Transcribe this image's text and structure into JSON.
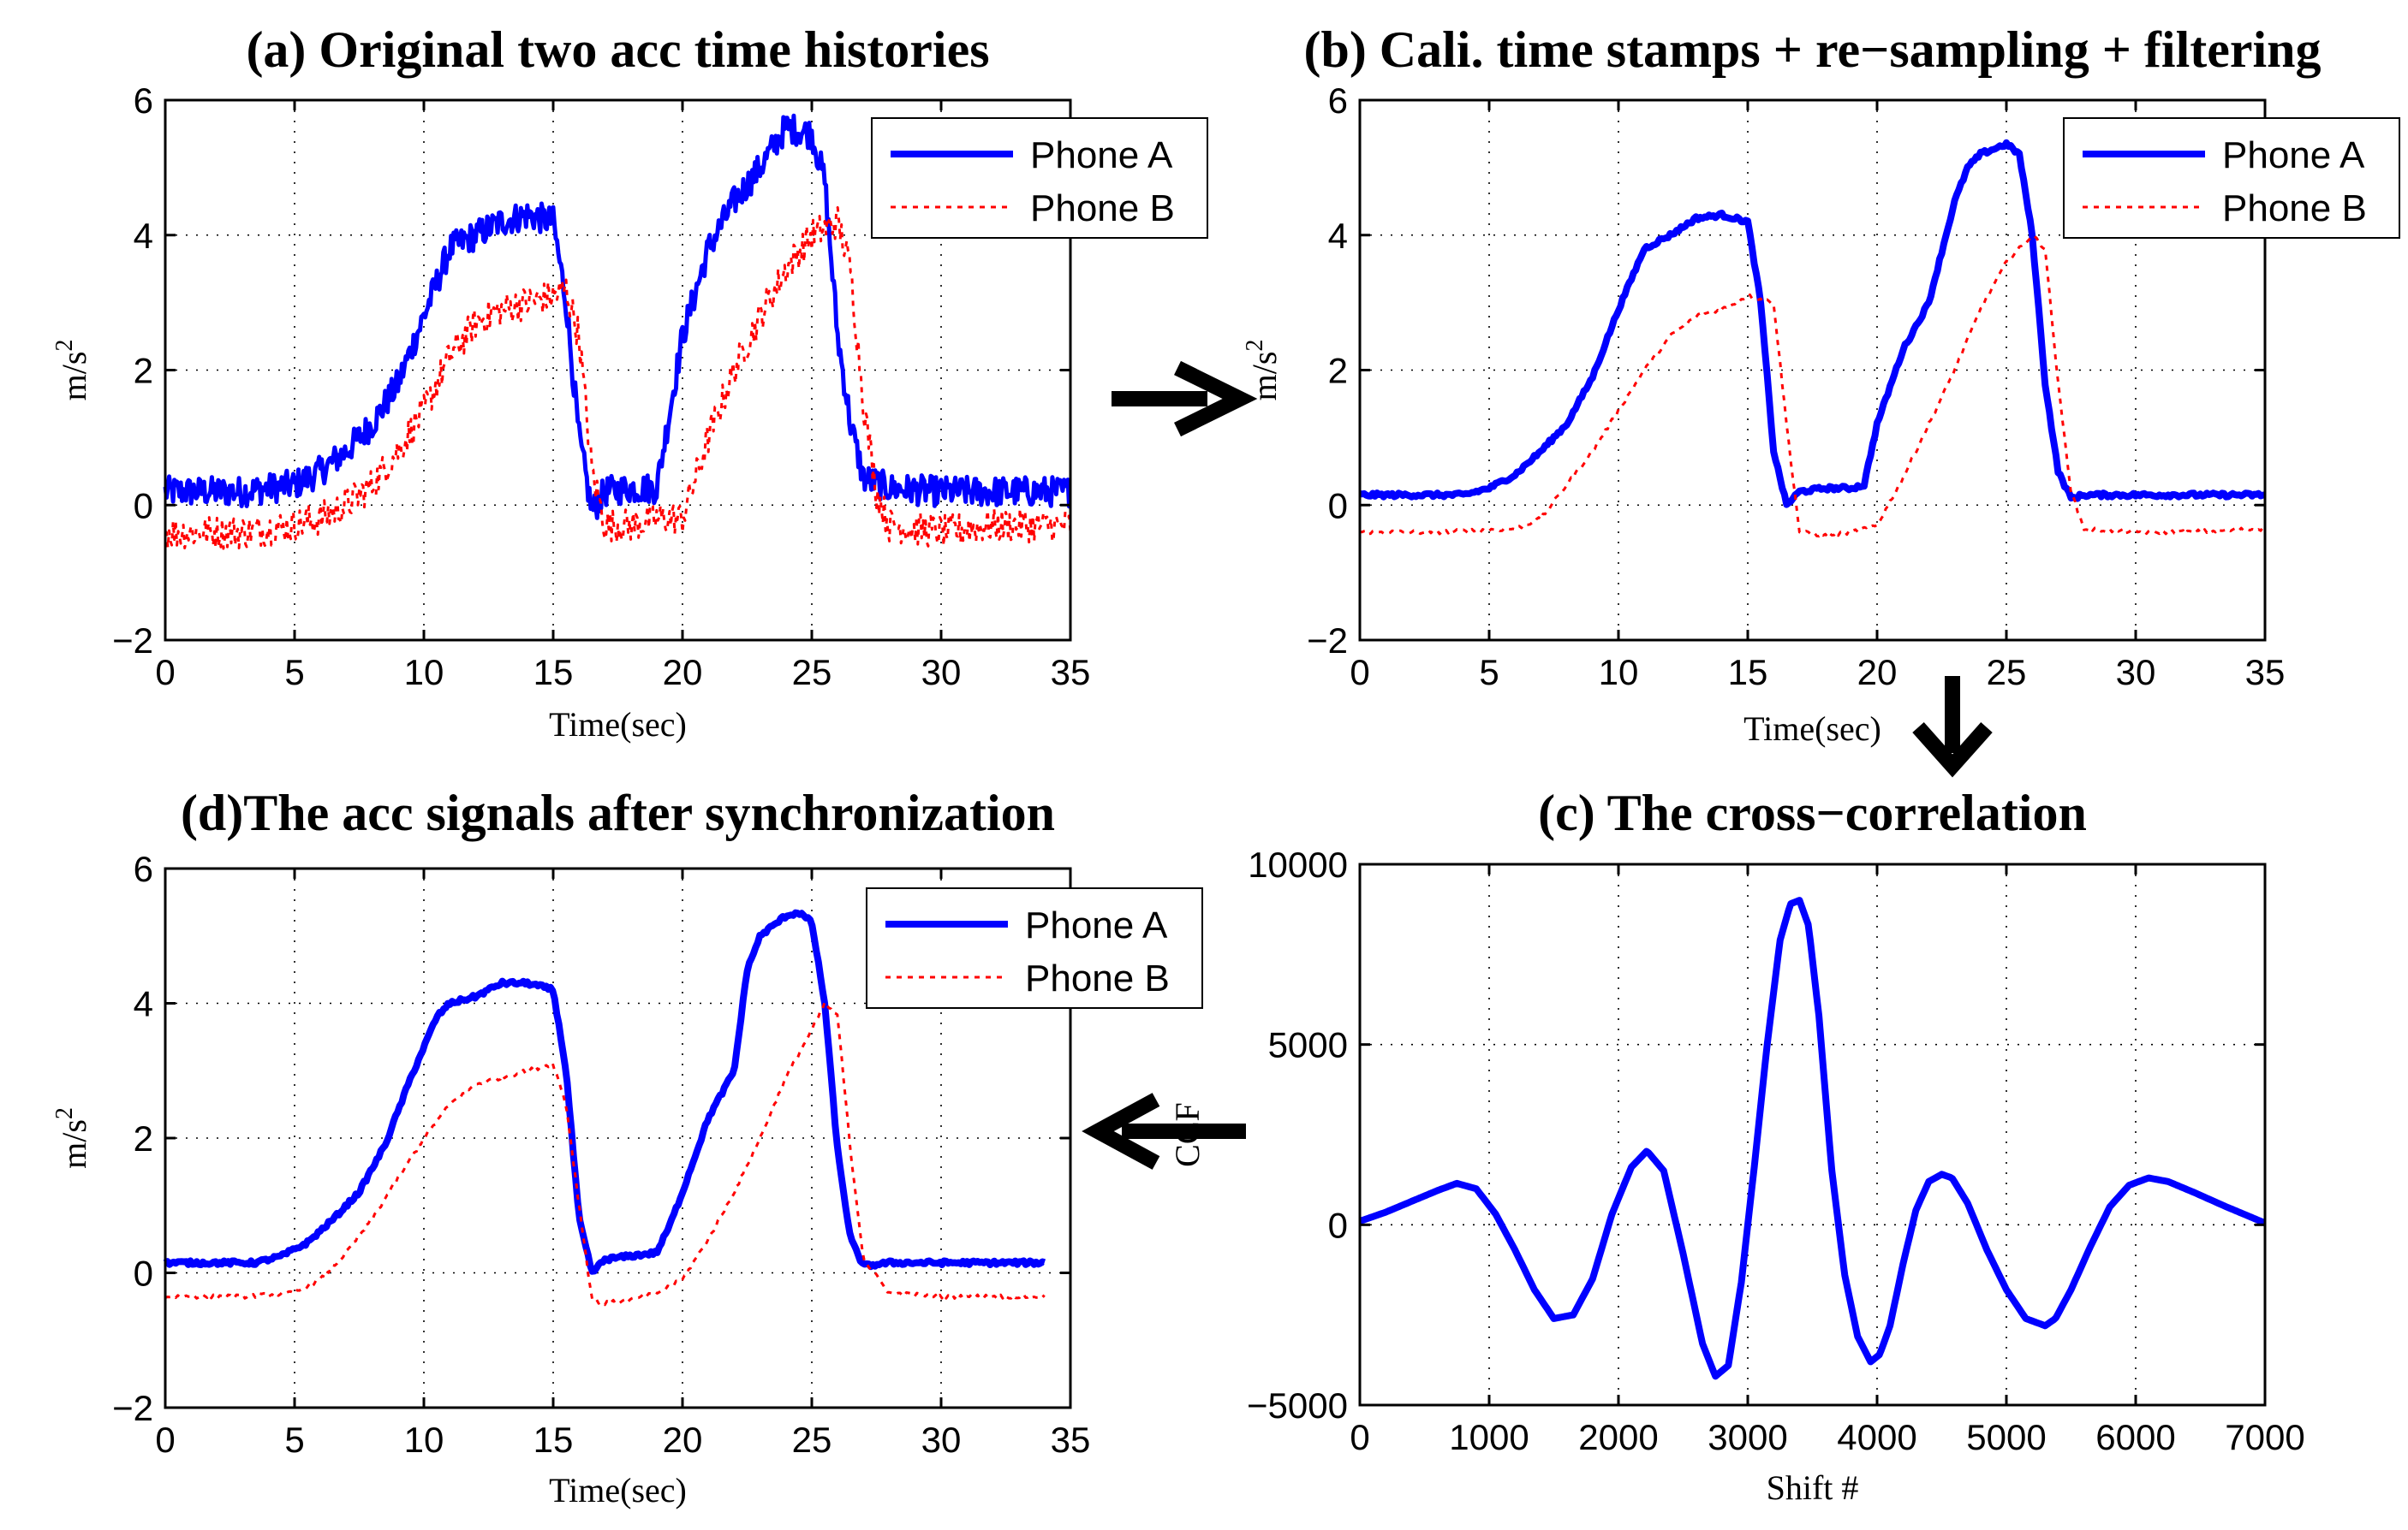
{
  "chart_data": [
    {
      "id": "a",
      "type": "line",
      "title": "(a) Original two acc time histories",
      "xlabel": "Time(sec)",
      "ylabel": "m/s",
      "ylabel_sup": "2",
      "xlim": [
        0,
        35
      ],
      "ylim": [
        -2,
        6
      ],
      "xticks": [
        0,
        5,
        10,
        15,
        20,
        25,
        30,
        35
      ],
      "yticks": [
        -2,
        0,
        2,
        4,
        6
      ],
      "grid": true,
      "legend": "top-right",
      "series": [
        {
          "name": "Phone A",
          "color": "#0000ff",
          "style": "solid",
          "noise": 0.45,
          "x": [
            0,
            3,
            5,
            6,
            7,
            8,
            9,
            10,
            11,
            12,
            13,
            14,
            15,
            15.5,
            16,
            16.5,
            17,
            18,
            19,
            20,
            21,
            22,
            23,
            24,
            25,
            25.5,
            26,
            26.5,
            27,
            28,
            30,
            32,
            35
          ],
          "y": [
            0.2,
            0.2,
            0.3,
            0.5,
            0.8,
            1.2,
            1.8,
            2.8,
            3.8,
            4.0,
            4.2,
            4.3,
            4.2,
            3.0,
            1.0,
            -0.1,
            0.2,
            0.25,
            0.25,
            2.5,
            3.8,
            4.5,
            5.0,
            5.6,
            5.5,
            4.8,
            2.5,
            1.2,
            0.4,
            0.25,
            0.2,
            0.2,
            0.2
          ]
        },
        {
          "name": "Phone B",
          "color": "#ff0000",
          "style": "dotted",
          "noise": 0.5,
          "x": [
            0,
            3,
            5,
            6,
            7,
            8,
            9,
            10,
            11,
            12,
            13,
            14,
            15,
            15.5,
            16,
            16.5,
            17,
            18,
            19,
            20,
            21,
            22,
            23,
            24,
            25,
            26,
            26.5,
            27,
            27.5,
            28,
            30,
            32,
            35
          ],
          "y": [
            -0.4,
            -0.4,
            -0.3,
            -0.2,
            0.0,
            0.3,
            0.8,
            1.4,
            2.2,
            2.7,
            2.9,
            3.0,
            3.1,
            3.2,
            2.5,
            0.5,
            -0.3,
            -0.3,
            -0.2,
            -0.2,
            1.0,
            2.0,
            2.8,
            3.5,
            4.0,
            4.2,
            3.5,
            1.5,
            0.2,
            -0.3,
            -0.4,
            -0.3,
            -0.3
          ]
        }
      ]
    },
    {
      "id": "b",
      "type": "line",
      "title": "(b) Cali. time stamps + re−sampling + filtering",
      "xlabel": "Time(sec)",
      "ylabel": "m/s",
      "ylabel_sup": "2",
      "xlim": [
        0,
        35
      ],
      "ylim": [
        -2,
        6
      ],
      "xticks": [
        0,
        5,
        10,
        15,
        20,
        25,
        30,
        35
      ],
      "yticks": [
        -2,
        0,
        2,
        4,
        6
      ],
      "grid": true,
      "legend": "top-right",
      "series": [
        {
          "name": "Phone A",
          "color": "#0000ff",
          "style": "solid",
          "noise": 0.06,
          "x": [
            0,
            2,
            4,
            5,
            6,
            7,
            8,
            9,
            10,
            11,
            12,
            13,
            14,
            15,
            15.5,
            16,
            16.5,
            17,
            18,
            19,
            19.5,
            20,
            21,
            22,
            23,
            23.5,
            24,
            25,
            25.5,
            26,
            26.5,
            27,
            27.5,
            28,
            30,
            32,
            35
          ],
          "y": [
            0.15,
            0.15,
            0.15,
            0.25,
            0.45,
            0.8,
            1.2,
            1.9,
            2.9,
            3.8,
            4.0,
            4.25,
            4.3,
            4.2,
            3.0,
            0.8,
            0.0,
            0.2,
            0.25,
            0.25,
            0.3,
            1.2,
            2.3,
            3.0,
            4.5,
            5.0,
            5.2,
            5.35,
            5.2,
            4.0,
            1.8,
            0.5,
            0.1,
            0.15,
            0.15,
            0.15,
            0.15
          ]
        },
        {
          "name": "Phone B",
          "color": "#ff0000",
          "style": "dotted",
          "noise": 0.06,
          "x": [
            0,
            3,
            6,
            7,
            8,
            9,
            10,
            11,
            12,
            13,
            14,
            15,
            16,
            16.5,
            17,
            18,
            19,
            20,
            21,
            22,
            23,
            24,
            25,
            26,
            26.5,
            27,
            27.5,
            28,
            30,
            32,
            35
          ],
          "y": [
            -0.4,
            -0.4,
            -0.35,
            -0.2,
            0.3,
            0.8,
            1.4,
            2.0,
            2.5,
            2.8,
            2.9,
            3.1,
            3.0,
            1.2,
            -0.4,
            -0.45,
            -0.4,
            -0.3,
            0.4,
            1.2,
            2.0,
            2.9,
            3.6,
            4.0,
            3.8,
            1.8,
            0.2,
            -0.35,
            -0.4,
            -0.4,
            -0.35
          ]
        }
      ]
    },
    {
      "id": "c",
      "type": "line",
      "title": "(c) The cross−correlation",
      "xlabel": "Shift #",
      "ylabel": "CCF",
      "xlim": [
        0,
        7000
      ],
      "ylim": [
        -5000,
        10000
      ],
      "xticks": [
        0,
        1000,
        2000,
        3000,
        4000,
        5000,
        6000,
        7000
      ],
      "yticks": [
        -5000,
        0,
        5000,
        10000
      ],
      "grid": true,
      "series": [
        {
          "name": "CCF",
          "color": "#0000ff",
          "style": "solid",
          "noise": 0,
          "x": [
            0,
            200,
            400,
            600,
            750,
            900,
            1050,
            1200,
            1350,
            1500,
            1650,
            1800,
            1950,
            2100,
            2220,
            2350,
            2500,
            2650,
            2750,
            2850,
            2950,
            3050,
            3150,
            3250,
            3330,
            3400,
            3470,
            3550,
            3650,
            3750,
            3850,
            3950,
            4020,
            4100,
            4200,
            4300,
            4400,
            4500,
            4580,
            4700,
            4850,
            5000,
            5150,
            5300,
            5380,
            5500,
            5650,
            5800,
            5950,
            6100,
            6250,
            6450,
            6700,
            7000
          ],
          "y": [
            100,
            350,
            650,
            950,
            1150,
            1000,
            300,
            -700,
            -1800,
            -2600,
            -2500,
            -1500,
            300,
            1600,
            2050,
            1500,
            -800,
            -3300,
            -4200,
            -3900,
            -1600,
            1600,
            5000,
            7900,
            8900,
            9000,
            8300,
            5800,
            1500,
            -1400,
            -3100,
            -3800,
            -3600,
            -2800,
            -1100,
            400,
            1200,
            1400,
            1300,
            600,
            -700,
            -1800,
            -2600,
            -2800,
            -2600,
            -1800,
            -600,
            500,
            1100,
            1300,
            1200,
            900,
            500,
            50
          ]
        }
      ]
    },
    {
      "id": "d",
      "type": "line",
      "title": "(d)The acc signals after synchronization",
      "xlabel": "Time(sec)",
      "ylabel": "m/s",
      "ylabel_sup": "2",
      "xlim": [
        0,
        35
      ],
      "ylim": [
        -2,
        6
      ],
      "xticks": [
        0,
        5,
        10,
        15,
        20,
        25,
        30,
        35
      ],
      "yticks": [
        -2,
        0,
        2,
        4,
        6
      ],
      "grid": true,
      "legend": "top-right",
      "series": [
        {
          "name": "Phone A",
          "color": "#0000ff",
          "style": "solid",
          "noise": 0.06,
          "x": [
            0,
            2,
            3.5,
            4.5,
            5.5,
            6.5,
            7.5,
            8.5,
            9.5,
            10.5,
            11,
            12,
            13,
            14,
            15,
            15.5,
            16,
            16.5,
            17,
            18,
            19,
            19.5,
            20,
            21,
            22,
            22.5,
            23,
            24,
            24.5,
            25,
            25.5,
            26,
            26.5,
            27,
            28,
            30,
            32,
            34
          ],
          "y": [
            0.15,
            0.15,
            0.15,
            0.25,
            0.45,
            0.8,
            1.2,
            1.9,
            2.9,
            3.8,
            4.0,
            4.1,
            4.3,
            4.3,
            4.2,
            3.0,
            0.8,
            0.0,
            0.2,
            0.25,
            0.3,
            0.7,
            1.2,
            2.3,
            3.0,
            4.5,
            5.0,
            5.3,
            5.35,
            5.2,
            4.0,
            1.8,
            0.5,
            0.1,
            0.15,
            0.15,
            0.15,
            0.15
          ]
        },
        {
          "name": "Phone B",
          "color": "#ff0000",
          "style": "dotted",
          "noise": 0.06,
          "x": [
            0,
            3,
            5,
            6,
            7,
            8,
            9,
            10,
            11,
            12,
            13,
            14,
            15,
            15.5,
            16,
            16.5,
            17,
            18,
            19,
            20,
            21,
            22,
            23,
            24,
            25,
            25.5,
            26,
            26.5,
            27,
            28,
            30,
            32,
            34
          ],
          "y": [
            -0.35,
            -0.35,
            -0.3,
            -0.1,
            0.3,
            0.8,
            1.4,
            2.0,
            2.5,
            2.8,
            2.9,
            3.0,
            3.1,
            2.5,
            1.0,
            -0.4,
            -0.45,
            -0.4,
            -0.3,
            -0.1,
            0.5,
            1.2,
            2.0,
            2.9,
            3.6,
            4.0,
            3.8,
            1.8,
            0.2,
            -0.3,
            -0.35,
            -0.35,
            -0.35
          ]
        }
      ]
    }
  ],
  "arrows": [
    {
      "name": "right-arrow",
      "direction": "right"
    },
    {
      "name": "down-arrow",
      "direction": "down"
    },
    {
      "name": "left-arrow",
      "direction": "left"
    }
  ]
}
